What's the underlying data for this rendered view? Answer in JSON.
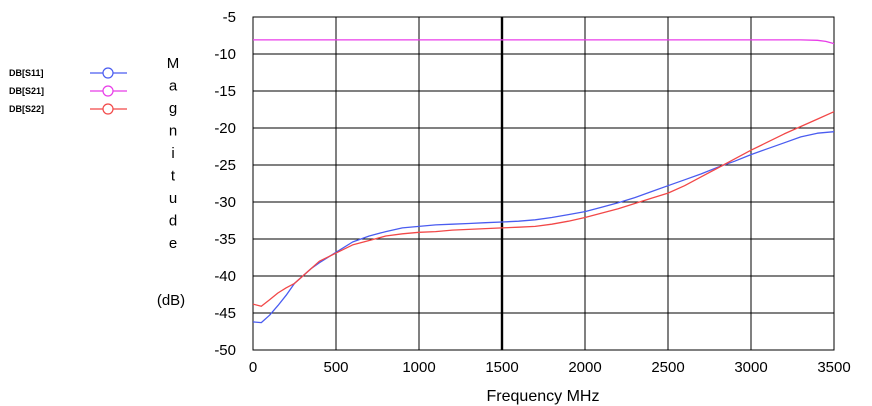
{
  "chart_data": {
    "type": "line",
    "xlabel": "Frequency MHz",
    "ylabel_letters": [
      "M",
      "a",
      "g",
      "n",
      "i",
      "t",
      "u",
      "d",
      "e"
    ],
    "ylabel_unit": "(dB)",
    "xlim": [
      0,
      3500
    ],
    "ylim": [
      -50,
      -5
    ],
    "xticks": [
      0,
      500,
      1000,
      1500,
      2000,
      2500,
      3000,
      3500
    ],
    "yticks": [
      -5,
      -10,
      -15,
      -20,
      -25,
      -30,
      -35,
      -40,
      -45,
      -50
    ],
    "marker_x": 1500,
    "grid": true,
    "legend_position": "left",
    "series": [
      {
        "name": "DB[S11]",
        "color": "#4a5cf0",
        "x": [
          0,
          50,
          100,
          150,
          200,
          250,
          300,
          350,
          400,
          500,
          600,
          700,
          800,
          900,
          1000,
          1100,
          1200,
          1300,
          1400,
          1500,
          1600,
          1700,
          1800,
          1900,
          2000,
          2100,
          2200,
          2300,
          2400,
          2500,
          2600,
          2700,
          2800,
          2900,
          3000,
          3100,
          3200,
          3300,
          3400,
          3500
        ],
        "y": [
          -46.2,
          -46.3,
          -45.3,
          -44.0,
          -42.6,
          -41.0,
          -40.0,
          -39.0,
          -38.2,
          -36.8,
          -35.4,
          -34.6,
          -34.0,
          -33.5,
          -33.3,
          -33.1,
          -33.0,
          -32.9,
          -32.8,
          -32.7,
          -32.6,
          -32.4,
          -32.1,
          -31.7,
          -31.3,
          -30.7,
          -30.1,
          -29.4,
          -28.6,
          -27.8,
          -27.0,
          -26.2,
          -25.3,
          -24.5,
          -23.6,
          -22.8,
          -22.0,
          -21.2,
          -20.7,
          -20.5
        ]
      },
      {
        "name": "DB[S21]",
        "color": "#e83ce8",
        "x": [
          0,
          500,
          1000,
          1500,
          2000,
          2500,
          3000,
          3300,
          3400,
          3450,
          3500
        ],
        "y": [
          -8.1,
          -8.1,
          -8.1,
          -8.1,
          -8.1,
          -8.1,
          -8.1,
          -8.1,
          -8.15,
          -8.3,
          -8.6
        ]
      },
      {
        "name": "DB[S22]",
        "color": "#f24848",
        "x": [
          0,
          50,
          100,
          150,
          200,
          250,
          300,
          350,
          400,
          500,
          600,
          700,
          800,
          900,
          1000,
          1100,
          1200,
          1300,
          1400,
          1500,
          1600,
          1700,
          1800,
          1900,
          2000,
          2100,
          2200,
          2300,
          2400,
          2500,
          2600,
          2700,
          2800,
          2900,
          3000,
          3100,
          3200,
          3300,
          3400,
          3500
        ],
        "y": [
          -43.8,
          -44.1,
          -43.2,
          -42.3,
          -41.6,
          -41.0,
          -40.0,
          -39.0,
          -38.0,
          -36.9,
          -35.8,
          -35.2,
          -34.6,
          -34.3,
          -34.1,
          -34.0,
          -33.8,
          -33.7,
          -33.6,
          -33.5,
          -33.4,
          -33.3,
          -33.0,
          -32.6,
          -32.1,
          -31.5,
          -30.9,
          -30.2,
          -29.5,
          -28.8,
          -27.8,
          -26.6,
          -25.4,
          -24.2,
          -23.0,
          -21.9,
          -20.8,
          -19.8,
          -18.8,
          -17.8
        ]
      }
    ]
  }
}
